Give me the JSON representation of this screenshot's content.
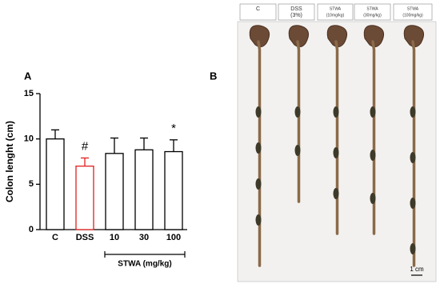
{
  "chart_data": {
    "type": "bar",
    "panel_label": "A",
    "y_label": "Colon lenght (cm)",
    "categories": [
      "C",
      "DSS",
      "10",
      "30",
      "100"
    ],
    "values": [
      10.0,
      7.0,
      8.4,
      8.8,
      8.6
    ],
    "errors": [
      1.0,
      0.9,
      1.7,
      1.3,
      1.3
    ],
    "colors": [
      "#000000",
      "#e02020",
      "#000000",
      "#000000",
      "#000000"
    ],
    "fill": "#ffffff",
    "ylim": [
      0,
      15
    ],
    "yticks": [
      0,
      5,
      10,
      15
    ],
    "grid": false,
    "annotations": [
      {
        "text": "#",
        "category": "DSS"
      },
      {
        "text": "*",
        "category": "100"
      }
    ],
    "group_label": "STWA (mg/kg)"
  },
  "photo_panel": {
    "panel_label": "B",
    "headers": [
      [
        "C"
      ],
      [
        "DSS",
        "(3%)"
      ],
      [
        "STWA",
        "(10mg/kg)"
      ],
      [
        "STWA",
        "(30mg/kg)"
      ],
      [
        "STWA",
        "(100mg/kg)"
      ]
    ],
    "scale_bar": "1 cm"
  }
}
